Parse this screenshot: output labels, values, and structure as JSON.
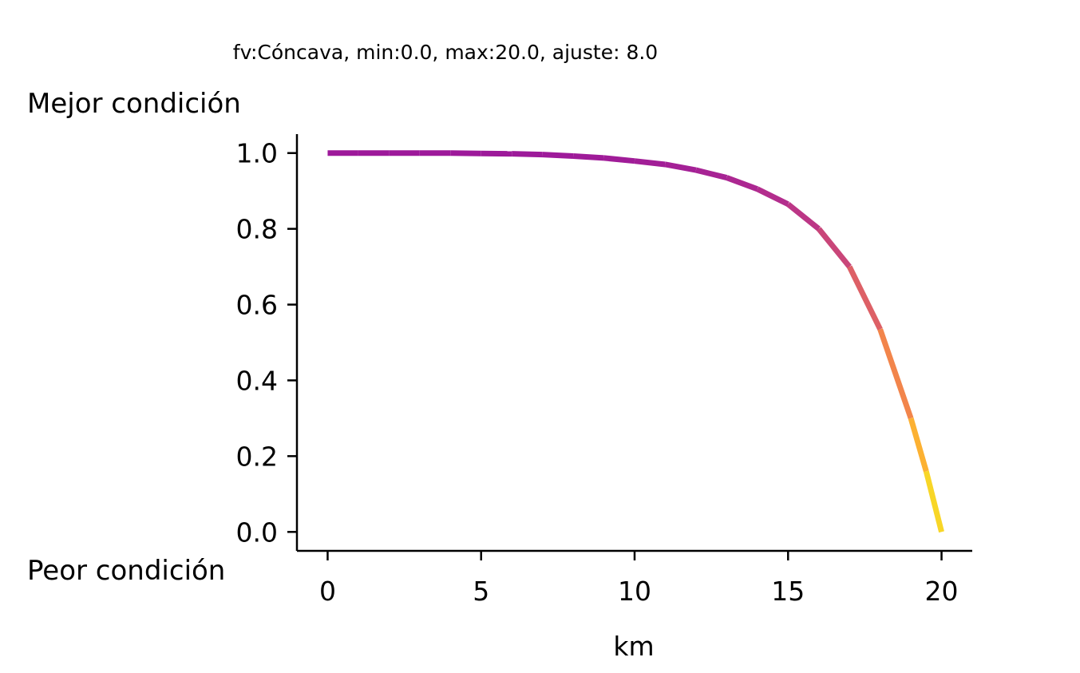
{
  "chart_data": {
    "type": "line",
    "title": "fv:Cóncava, min:0.0, max:20.0, ajuste: 8.0",
    "xlabel": "km",
    "ylabel_top": "Mejor condición",
    "ylabel_bottom": "Peor condición",
    "xlim": [
      -1,
      21
    ],
    "ylim": [
      -0.05,
      1.05
    ],
    "xticks": [
      0,
      5,
      10,
      15,
      20
    ],
    "xtick_labels": [
      "0",
      "5",
      "10",
      "15",
      "20"
    ],
    "yticks": [
      0.0,
      0.2,
      0.4,
      0.6,
      0.8,
      1.0
    ],
    "ytick_labels": [
      "0.0",
      "0.2",
      "0.4",
      "0.6",
      "0.8",
      "1.0"
    ],
    "grid": false,
    "colormap": "plasma (purple to yellow by x)",
    "series": [
      {
        "x": [
          0,
          1,
          2,
          3,
          4,
          5,
          6,
          7,
          8,
          9,
          10,
          11,
          12,
          13,
          14,
          15,
          16,
          17,
          18,
          19,
          19.5,
          20
        ],
        "values": [
          1.0,
          1.0,
          1.0,
          1.0,
          1.0,
          0.999,
          0.998,
          0.996,
          0.992,
          0.987,
          0.979,
          0.97,
          0.955,
          0.935,
          0.905,
          0.865,
          0.8,
          0.7,
          0.535,
          0.3,
          0.16,
          0.0
        ]
      }
    ],
    "colors": {
      "line_start": "#6a1b9a",
      "line_mid": "#cc0f8a",
      "line_end": "#f8d962"
    }
  }
}
